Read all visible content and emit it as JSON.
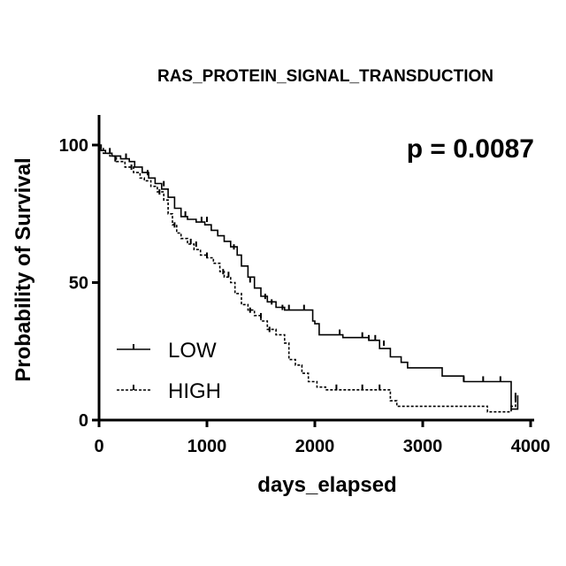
{
  "chart_data": {
    "type": "line",
    "title": "RAS_PROTEIN_SIGNAL_TRANSDUCTION",
    "annotation": "p = 0.0087",
    "xlabel": "days_elapsed",
    "ylabel": "Probability of Survival",
    "xlim": [
      0,
      4100
    ],
    "ylim": [
      0,
      110
    ],
    "xticks": [
      "0",
      "1000",
      "2000",
      "3000",
      "4000"
    ],
    "yticks": [
      "0",
      "50",
      "100"
    ],
    "legend_position": "bottom-left",
    "series": [
      {
        "name": "LOW",
        "style": "solid",
        "color": "#000000",
        "steps": [
          [
            0,
            100
          ],
          [
            20,
            98
          ],
          [
            60,
            97
          ],
          [
            120,
            96
          ],
          [
            200,
            95
          ],
          [
            280,
            94
          ],
          [
            330,
            92
          ],
          [
            400,
            90
          ],
          [
            460,
            88
          ],
          [
            520,
            86
          ],
          [
            580,
            84
          ],
          [
            640,
            81
          ],
          [
            700,
            77
          ],
          [
            760,
            74
          ],
          [
            820,
            73
          ],
          [
            900,
            72
          ],
          [
            980,
            71
          ],
          [
            1040,
            69
          ],
          [
            1100,
            67
          ],
          [
            1160,
            65
          ],
          [
            1220,
            63
          ],
          [
            1280,
            60
          ],
          [
            1320,
            56
          ],
          [
            1380,
            52
          ],
          [
            1440,
            48
          ],
          [
            1500,
            45
          ],
          [
            1560,
            43
          ],
          [
            1640,
            41
          ],
          [
            1720,
            40
          ],
          [
            1980,
            36
          ],
          [
            2000,
            35
          ],
          [
            2040,
            31
          ],
          [
            2260,
            30
          ],
          [
            2500,
            29
          ],
          [
            2600,
            26
          ],
          [
            2700,
            23
          ],
          [
            2800,
            21
          ],
          [
            2860,
            19
          ],
          [
            3000,
            19
          ],
          [
            3180,
            16
          ],
          [
            3380,
            14
          ],
          [
            3820,
            4
          ],
          [
            3880,
            9
          ]
        ],
        "end_x": 3880,
        "censor": [
          [
            100,
            97
          ],
          [
            250,
            95
          ],
          [
            450,
            89
          ],
          [
            600,
            85
          ],
          [
            800,
            74
          ],
          [
            950,
            72
          ],
          [
            1000,
            72
          ],
          [
            1250,
            62
          ],
          [
            1400,
            50
          ],
          [
            1540,
            44
          ],
          [
            1600,
            42
          ],
          [
            1700,
            40
          ],
          [
            1760,
            40
          ],
          [
            1900,
            40
          ],
          [
            2230,
            31
          ],
          [
            2440,
            30
          ],
          [
            2500,
            29
          ],
          [
            2560,
            29
          ],
          [
            2640,
            27
          ],
          [
            3380,
            14
          ],
          [
            3560,
            14
          ],
          [
            3720,
            14
          ],
          [
            3860,
            8
          ]
        ]
      },
      {
        "name": "HIGH",
        "style": "dashed",
        "color": "#000000",
        "steps": [
          [
            0,
            99
          ],
          [
            40,
            97
          ],
          [
            100,
            96
          ],
          [
            160,
            94
          ],
          [
            240,
            92
          ],
          [
            320,
            90
          ],
          [
            380,
            88
          ],
          [
            420,
            87
          ],
          [
            480,
            85
          ],
          [
            540,
            83
          ],
          [
            600,
            80
          ],
          [
            640,
            75
          ],
          [
            680,
            71
          ],
          [
            720,
            68
          ],
          [
            760,
            66
          ],
          [
            820,
            64
          ],
          [
            880,
            62
          ],
          [
            940,
            60
          ],
          [
            1000,
            59
          ],
          [
            1060,
            57
          ],
          [
            1120,
            54
          ],
          [
            1160,
            52
          ],
          [
            1220,
            50
          ],
          [
            1260,
            46
          ],
          [
            1320,
            42
          ],
          [
            1380,
            40
          ],
          [
            1440,
            38
          ],
          [
            1500,
            36
          ],
          [
            1560,
            33
          ],
          [
            1640,
            31
          ],
          [
            1720,
            28
          ],
          [
            1760,
            22
          ],
          [
            1820,
            20
          ],
          [
            1880,
            17
          ],
          [
            1940,
            14
          ],
          [
            2020,
            12
          ],
          [
            2100,
            11
          ],
          [
            2700,
            7
          ],
          [
            2760,
            5
          ],
          [
            3600,
            3
          ],
          [
            3800,
            3
          ],
          [
            3820,
            5
          ],
          [
            3860,
            7
          ]
        ],
        "end_x": 3880,
        "censor": [
          [
            150,
            94
          ],
          [
            300,
            91
          ],
          [
            560,
            82
          ],
          [
            700,
            70
          ],
          [
            850,
            64
          ],
          [
            900,
            63
          ],
          [
            1000,
            59
          ],
          [
            1150,
            53
          ],
          [
            1200,
            52
          ],
          [
            1400,
            39
          ],
          [
            1500,
            37
          ],
          [
            1580,
            32
          ],
          [
            2200,
            11
          ],
          [
            2440,
            11
          ],
          [
            2600,
            11
          ],
          [
            3860,
            7
          ]
        ]
      }
    ]
  }
}
